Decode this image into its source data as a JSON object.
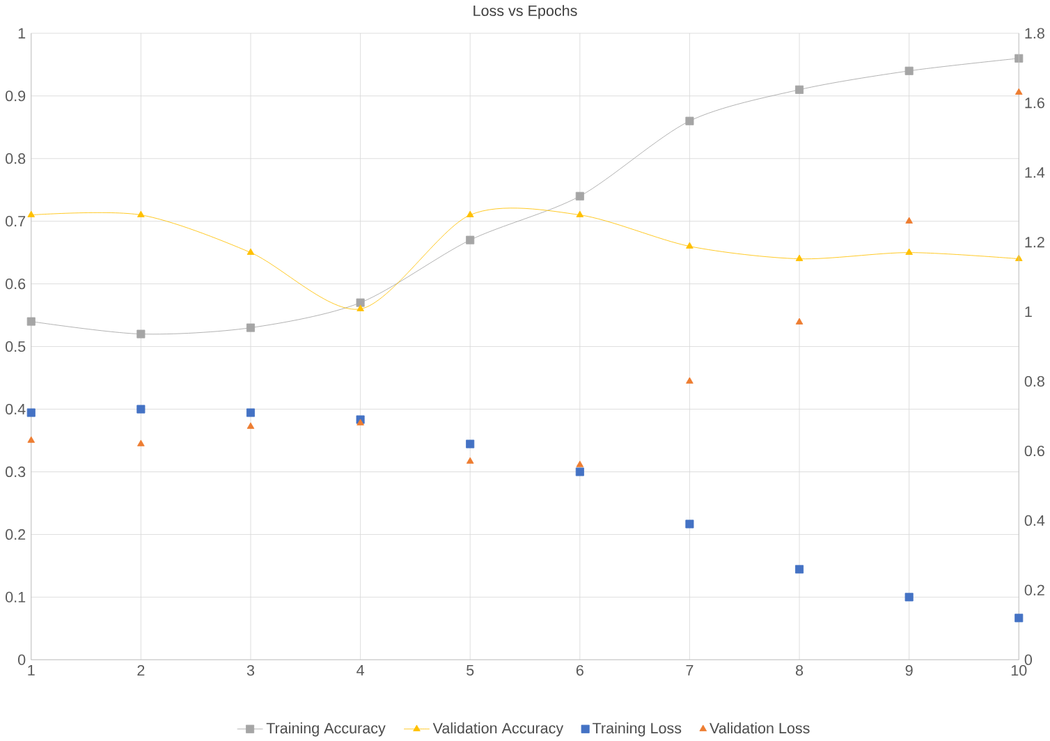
{
  "chart_data": {
    "type": "line",
    "title": "Loss vs Epochs",
    "x": [
      1,
      2,
      3,
      4,
      5,
      6,
      7,
      8,
      9,
      10
    ],
    "xlim": [
      1,
      10
    ],
    "xticks": [
      1,
      2,
      3,
      4,
      5,
      6,
      7,
      8,
      9,
      10
    ],
    "ylim": [
      0,
      1
    ],
    "yticks": [
      0,
      0.1,
      0.2,
      0.3,
      0.4,
      0.5,
      0.6,
      0.7,
      0.8,
      0.9,
      1
    ],
    "y2lim": [
      0,
      1.8
    ],
    "y2ticks": [
      0,
      0.2,
      0.4,
      0.6,
      0.8,
      1,
      1.2,
      1.4,
      1.6,
      1.8
    ],
    "grid": true,
    "legend": "bottom",
    "series": [
      {
        "name": "Training Accuracy",
        "marker": "square",
        "color": "#a5a5a5",
        "values": [
          0.54,
          0.52,
          0.53,
          0.57,
          0.67,
          0.74,
          0.86,
          0.91,
          0.94,
          0.96
        ]
      },
      {
        "name": "Validation Accuracy",
        "marker": "triangle",
        "color": "#ffc000",
        "values": [
          0.71,
          0.71,
          0.65,
          0.56,
          0.71,
          0.71,
          0.66,
          0.64,
          0.65,
          0.64
        ]
      },
      {
        "name": "Training Loss",
        "type": "scatter",
        "axis": "y2",
        "marker": "square",
        "color": "#4472c4",
        "values": [
          0.71,
          0.72,
          0.71,
          0.69,
          0.62,
          0.54,
          0.39,
          0.26,
          0.18,
          0.12
        ]
      },
      {
        "name": "Validation Loss",
        "type": "scatter",
        "axis": "y2",
        "marker": "triangle",
        "color": "#ed7d31",
        "values": [
          0.63,
          0.62,
          0.67,
          0.68,
          0.57,
          0.56,
          0.8,
          0.97,
          1.26,
          1.63
        ]
      }
    ]
  }
}
